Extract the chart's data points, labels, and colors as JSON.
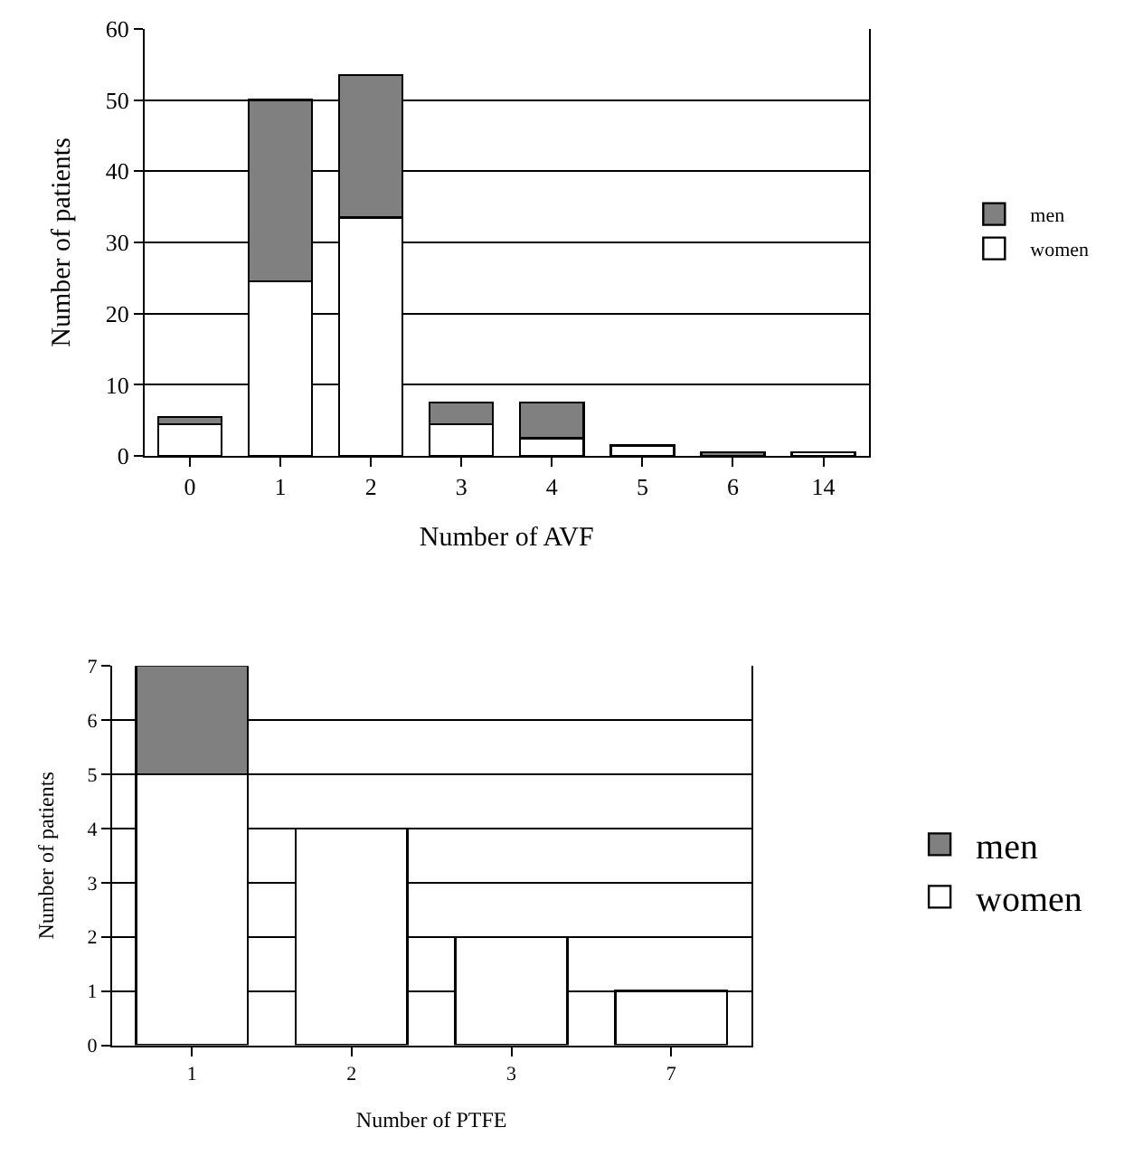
{
  "chart_data": [
    {
      "type": "bar",
      "stacked": true,
      "xlabel": "Number of AVF",
      "ylabel": "Number of patients",
      "categories": [
        "0",
        "1",
        "2",
        "3",
        "4",
        "5",
        "6",
        "14"
      ],
      "ylim": [
        0,
        60
      ],
      "yticks": [
        0,
        10,
        20,
        30,
        40,
        50,
        60
      ],
      "grid": "y",
      "legend": "right",
      "series": [
        {
          "name": "women",
          "color": "#ffffff",
          "values": [
            4.5,
            24.5,
            33.5,
            4.5,
            2.5,
            1.5,
            0,
            0.5
          ]
        },
        {
          "name": "men",
          "color": "#808080",
          "values": [
            1,
            25.5,
            20,
            3,
            5,
            0,
            0.5,
            0
          ]
        }
      ]
    },
    {
      "type": "bar",
      "stacked": true,
      "xlabel": "Number of PTFE",
      "ylabel": "Number of patients",
      "categories": [
        "1",
        "2",
        "3",
        "7"
      ],
      "ylim": [
        0,
        7
      ],
      "yticks": [
        0,
        1,
        2,
        3,
        4,
        5,
        6,
        7
      ],
      "grid": "y",
      "legend": "right",
      "series": [
        {
          "name": "women",
          "color": "#ffffff",
          "values": [
            5,
            4,
            2,
            1
          ]
        },
        {
          "name": "men",
          "color": "#808080",
          "values": [
            2,
            0,
            0,
            0
          ]
        }
      ]
    }
  ]
}
